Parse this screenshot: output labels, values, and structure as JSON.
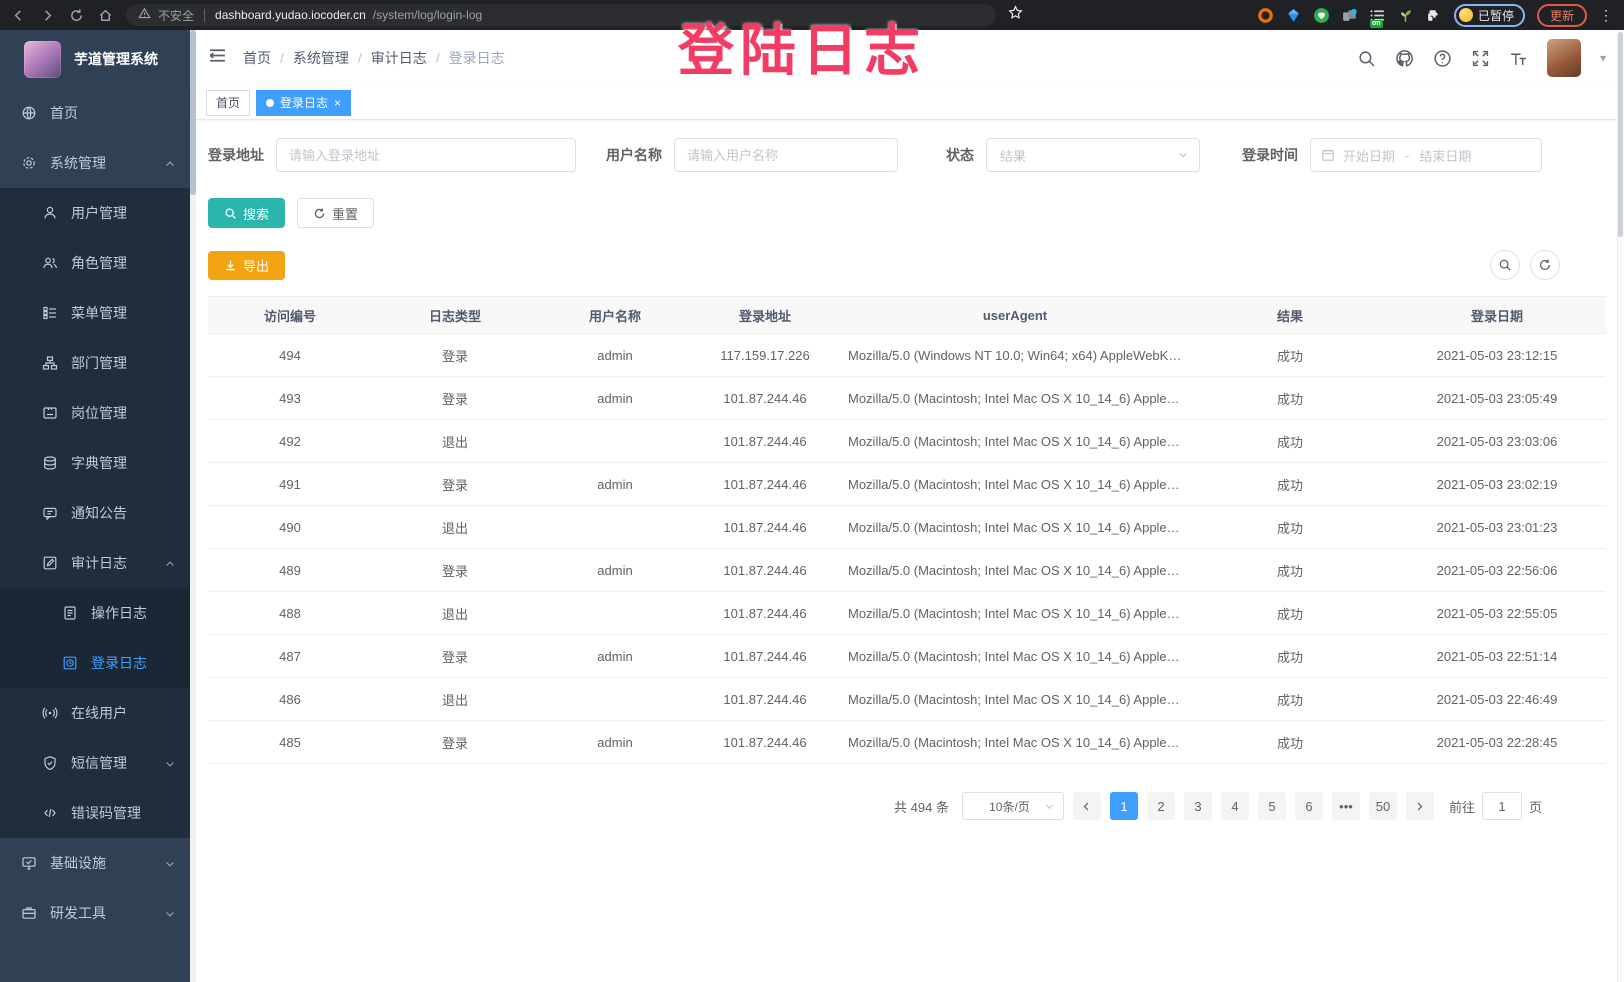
{
  "overlay": {
    "text": "登陆日志",
    "color": "#f23c64"
  },
  "browser": {
    "security_label": "不安全",
    "url_host": "dashboard.yudao.iocoder.cn",
    "url_path": "/system/log/login-log",
    "extension_badge": "on",
    "paused_label": "已暂停",
    "update_label": "更新",
    "kebab_glyph": "⋮"
  },
  "sidebar": {
    "title": "芋道管理系统",
    "items": [
      {
        "name": "home",
        "label": "首页",
        "level": 1,
        "icon": "dashboard",
        "bg": "base"
      },
      {
        "name": "system-management",
        "label": "系统管理",
        "level": 1,
        "icon": "gear",
        "bg": "base",
        "chevron": "up"
      },
      {
        "name": "user-management",
        "label": "用户管理",
        "level": 2,
        "icon": "user",
        "bg": "sub"
      },
      {
        "name": "role-management",
        "label": "角色管理",
        "level": 2,
        "icon": "users",
        "bg": "sub"
      },
      {
        "name": "menu-management",
        "label": "菜单管理",
        "level": 2,
        "icon": "menu-tree",
        "bg": "sub"
      },
      {
        "name": "dept-management",
        "label": "部门管理",
        "level": 2,
        "icon": "org-tree",
        "bg": "sub"
      },
      {
        "name": "post-management",
        "label": "岗位管理",
        "level": 2,
        "icon": "id-card",
        "bg": "sub"
      },
      {
        "name": "dict-management",
        "label": "字典管理",
        "level": 2,
        "icon": "dictionary",
        "bg": "sub"
      },
      {
        "name": "notice",
        "label": "通知公告",
        "level": 2,
        "icon": "megaphone",
        "bg": "sub"
      },
      {
        "name": "audit-log",
        "label": "审计日志",
        "level": 2,
        "icon": "edit-log",
        "bg": "sub",
        "chevron": "up"
      },
      {
        "name": "operate-log",
        "label": "操作日志",
        "level": 3,
        "icon": "document",
        "bg": "nested"
      },
      {
        "name": "login-log",
        "label": "登录日志",
        "level": 3,
        "icon": "login-log",
        "bg": "nested",
        "active": true
      },
      {
        "name": "online-user",
        "label": "在线用户",
        "level": 2,
        "icon": "online",
        "bg": "sub"
      },
      {
        "name": "sms-management",
        "label": "短信管理",
        "level": 2,
        "icon": "shield",
        "bg": "sub",
        "chevron": "down"
      },
      {
        "name": "error-code",
        "label": "错误码管理",
        "level": 2,
        "icon": "code",
        "bg": "sub"
      },
      {
        "name": "infrastructure",
        "label": "基础设施",
        "level": 1,
        "icon": "infrastructure",
        "bg": "base",
        "chevron": "down"
      },
      {
        "name": "dev-tool",
        "label": "研发工具",
        "level": 1,
        "icon": "dev-tools",
        "bg": "base",
        "chevron": "down"
      }
    ]
  },
  "breadcrumb": {
    "items": [
      "首页",
      "系统管理",
      "审计日志",
      "登录日志"
    ],
    "separator": "/"
  },
  "tabs": [
    {
      "label": "首页",
      "active": false
    },
    {
      "label": "登录日志",
      "active": true,
      "close_glyph": "×"
    }
  ],
  "filters": {
    "login_address": {
      "label": "登录地址",
      "placeholder": "请输入登录地址"
    },
    "username": {
      "label": "用户名称",
      "placeholder": "请输入用户名称"
    },
    "status": {
      "label": "状态",
      "placeholder": "结果"
    },
    "login_time": {
      "label": "登录时间",
      "start_placeholder": "开始日期",
      "separator": "-",
      "end_placeholder": "结束日期"
    }
  },
  "toolbar": {
    "search_label": "搜索",
    "reset_label": "重置",
    "export_label": "导出"
  },
  "table": {
    "columns": [
      "访问编号",
      "日志类型",
      "用户名称",
      "登录地址",
      "userAgent",
      "结果",
      "登录日期"
    ],
    "rows": [
      {
        "id": "494",
        "type": "登录",
        "user": "admin",
        "ip": "117.159.17.226",
        "ua": "Mozilla/5.0 (Windows NT 10.0; Win64; x64) AppleWebKit...",
        "result": "成功",
        "date": "2021-05-03 23:12:15"
      },
      {
        "id": "493",
        "type": "登录",
        "user": "admin",
        "ip": "101.87.244.46",
        "ua": "Mozilla/5.0 (Macintosh; Intel Mac OS X 10_14_6) AppleWe...",
        "result": "成功",
        "date": "2021-05-03 23:05:49"
      },
      {
        "id": "492",
        "type": "退出",
        "user": "",
        "ip": "101.87.244.46",
        "ua": "Mozilla/5.0 (Macintosh; Intel Mac OS X 10_14_6) AppleWe...",
        "result": "成功",
        "date": "2021-05-03 23:03:06"
      },
      {
        "id": "491",
        "type": "登录",
        "user": "admin",
        "ip": "101.87.244.46",
        "ua": "Mozilla/5.0 (Macintosh; Intel Mac OS X 10_14_6) AppleWe...",
        "result": "成功",
        "date": "2021-05-03 23:02:19"
      },
      {
        "id": "490",
        "type": "退出",
        "user": "",
        "ip": "101.87.244.46",
        "ua": "Mozilla/5.0 (Macintosh; Intel Mac OS X 10_14_6) AppleWe...",
        "result": "成功",
        "date": "2021-05-03 23:01:23"
      },
      {
        "id": "489",
        "type": "登录",
        "user": "admin",
        "ip": "101.87.244.46",
        "ua": "Mozilla/5.0 (Macintosh; Intel Mac OS X 10_14_6) AppleWe...",
        "result": "成功",
        "date": "2021-05-03 22:56:06"
      },
      {
        "id": "488",
        "type": "退出",
        "user": "",
        "ip": "101.87.244.46",
        "ua": "Mozilla/5.0 (Macintosh; Intel Mac OS X 10_14_6) AppleWe...",
        "result": "成功",
        "date": "2021-05-03 22:55:05"
      },
      {
        "id": "487",
        "type": "登录",
        "user": "admin",
        "ip": "101.87.244.46",
        "ua": "Mozilla/5.0 (Macintosh; Intel Mac OS X 10_14_6) AppleWe...",
        "result": "成功",
        "date": "2021-05-03 22:51:14"
      },
      {
        "id": "486",
        "type": "退出",
        "user": "",
        "ip": "101.87.244.46",
        "ua": "Mozilla/5.0 (Macintosh; Intel Mac OS X 10_14_6) AppleWe...",
        "result": "成功",
        "date": "2021-05-03 22:46:49"
      },
      {
        "id": "485",
        "type": "登录",
        "user": "admin",
        "ip": "101.87.244.46",
        "ua": "Mozilla/5.0 (Macintosh; Intel Mac OS X 10_14_6) AppleWe...",
        "result": "成功",
        "date": "2021-05-03 22:28:45"
      }
    ]
  },
  "pagination": {
    "total_label": "共 494 条",
    "page_size_label": "10条/页",
    "pages": [
      "1",
      "2",
      "3",
      "4",
      "5",
      "6",
      "•••",
      "50"
    ],
    "active_page": "1",
    "goto_label": "前往",
    "goto_value": "1",
    "page_unit": "页"
  },
  "colors": {
    "primary": "#409eff",
    "sidebar_bg": "#304156",
    "submenu_bg": "#1f2d3d",
    "search_btn": "#2bb6ad",
    "export_btn": "#f2a413",
    "overlay_pink": "#f23c64"
  }
}
